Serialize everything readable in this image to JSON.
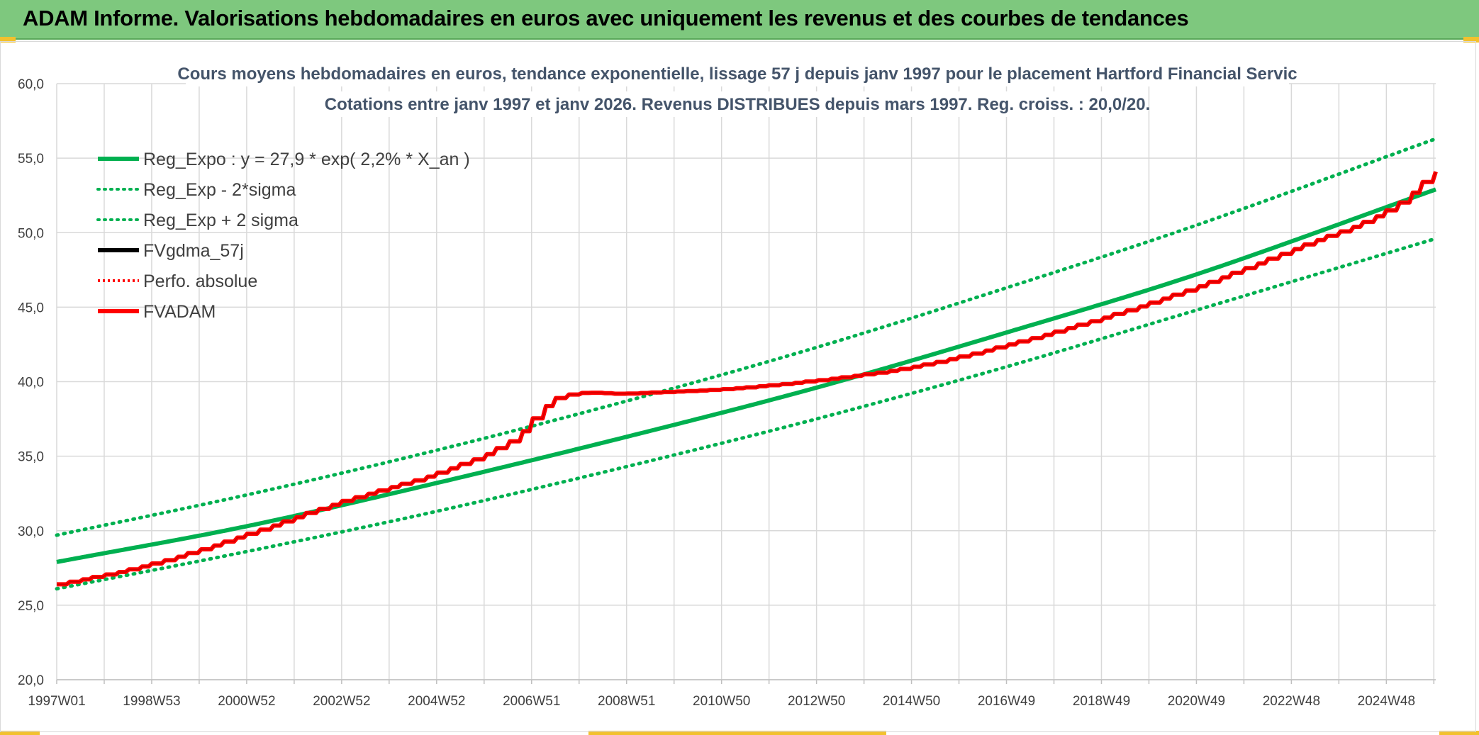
{
  "header": {
    "title": "ADAM Informe. Valorisations hebdomadaires en euros avec uniquement les revenus et des courbes de tendances"
  },
  "colors": {
    "header_bg": "#7ec87e",
    "accent": "#f2c12e",
    "green": "#00b050",
    "red": "#ff0000",
    "black": "#000000",
    "grid": "#d9d9d9"
  },
  "chart_data": {
    "type": "line",
    "title_line1": "Cours moyens hebdomadaires en euros, tendance exponentielle, lissage 57 j depuis janv 1997 pour le placement Hartford Financial Servic",
    "title_line2": "Cotations entre janv 1997 et janv 2026. Revenus DISTRIBUES depuis mars 1997. Reg. croiss. : 20,0/20.",
    "xlabel": "",
    "ylabel": "",
    "ylim": [
      20,
      60
    ],
    "yticks": [
      "20,0",
      "25,0",
      "30,0",
      "35,0",
      "40,0",
      "45,0",
      "50,0",
      "55,0",
      "60,0"
    ],
    "xlim": [
      0,
      29.04
    ],
    "xtick_labels": [
      "1997W01",
      "1998W53",
      "2000W52",
      "2002W52",
      "2004W52",
      "2006W51",
      "2008W51",
      "2010W50",
      "2012W50",
      "2014W50",
      "2016W49",
      "2018W49",
      "2020W49",
      "2022W48",
      "2024W48"
    ],
    "grid": true,
    "legend_position": "top-left",
    "legend": [
      {
        "key": "reg",
        "label": "Reg_Expo : y = 27,9 * exp( 2,2% *  X_an )",
        "color": "#00b050",
        "style": "solid"
      },
      {
        "key": "low",
        "label": "Reg_Exp - 2*sigma",
        "color": "#00b050",
        "style": "dotted"
      },
      {
        "key": "high",
        "label": "Reg_Exp + 2 sigma",
        "color": "#00b050",
        "style": "dotted"
      },
      {
        "key": "gdma",
        "label": "FVgdma_57j",
        "color": "#000000",
        "style": "solid"
      },
      {
        "key": "perf",
        "label": "Perfo. absolue",
        "color": "#ff0000",
        "style": "dotted"
      },
      {
        "key": "fvadam",
        "label": "FVADAM",
        "color": "#ff0000",
        "style": "solid"
      }
    ],
    "series": [
      {
        "name": "Reg_Expo",
        "x": [
          0,
          4,
          8,
          12,
          16,
          20,
          24,
          29.04
        ],
        "values": [
          27.9,
          30.3,
          33.2,
          36.3,
          39.6,
          43.3,
          47.2,
          52.9
        ]
      },
      {
        "name": "Reg_Exp - 2*sigma",
        "x": [
          0,
          4,
          8,
          12,
          16,
          20,
          24,
          29.04
        ],
        "values": [
          26.1,
          28.6,
          31.3,
          34.3,
          37.5,
          41.0,
          44.8,
          49.6
        ]
      },
      {
        "name": "Reg_Exp + 2 sigma",
        "x": [
          0,
          4,
          8,
          12,
          16,
          20,
          24,
          29.04
        ],
        "values": [
          29.7,
          32.4,
          35.4,
          38.7,
          42.3,
          46.3,
          50.5,
          56.3
        ]
      },
      {
        "name": "FVADAM",
        "x": [
          0,
          2,
          4,
          6,
          8,
          9.5,
          10.5,
          12,
          14,
          16,
          18,
          20,
          22,
          24,
          26,
          28,
          29.04
        ],
        "values": [
          26.4,
          27.8,
          29.8,
          32.0,
          33.9,
          36.0,
          38.9,
          39.2,
          39.5,
          40.1,
          41.0,
          42.5,
          44.3,
          46.4,
          48.9,
          51.5,
          54.2
        ]
      }
    ]
  }
}
